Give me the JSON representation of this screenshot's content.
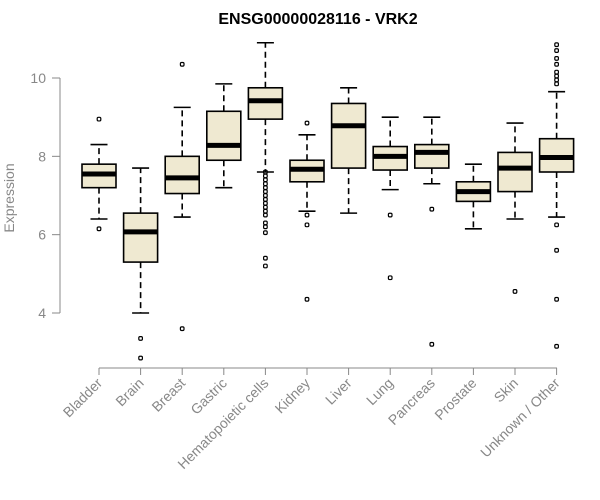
{
  "chart_data": {
    "type": "boxplot",
    "title": "ENSG00000028116 - VRK2",
    "ylabel": "Expression",
    "ylim": [
      2.6,
      11.3
    ],
    "yticks": [
      4,
      6,
      8,
      10
    ],
    "grid": false,
    "legend": "none",
    "colors": {
      "box_fill": "#efe9d1",
      "stroke": "#000000",
      "axis_text": "#888888"
    },
    "categories": [
      "Bladder",
      "Brain",
      "Breast",
      "Gastric",
      "Hematopoietic cells",
      "Kidney",
      "Liver",
      "Lung",
      "Pancreas",
      "Prostate",
      "Skin",
      "Unknown / Other"
    ],
    "boxes": [
      {
        "whisker_low": 6.4,
        "q1": 7.2,
        "median": 7.55,
        "q3": 7.8,
        "whisker_high": 8.3,
        "outliers": [
          6.15,
          8.95
        ]
      },
      {
        "whisker_low": 4.0,
        "q1": 5.3,
        "median": 6.07,
        "q3": 6.55,
        "whisker_high": 7.7,
        "outliers": [
          3.35,
          2.85
        ]
      },
      {
        "whisker_low": 6.45,
        "q1": 7.05,
        "median": 7.45,
        "q3": 8.0,
        "whisker_high": 9.25,
        "outliers": [
          10.35,
          3.6
        ]
      },
      {
        "whisker_low": 7.2,
        "q1": 7.9,
        "median": 8.28,
        "q3": 9.15,
        "whisker_high": 9.85,
        "outliers": []
      },
      {
        "whisker_low": 7.6,
        "q1": 8.95,
        "median": 9.42,
        "q3": 9.75,
        "whisker_high": 10.9,
        "outliers": [
          7.6,
          7.5,
          7.4,
          7.3,
          7.2,
          7.1,
          7.0,
          6.9,
          6.8,
          6.7,
          6.6,
          6.5,
          6.3,
          6.2,
          6.05,
          5.4,
          5.2
        ]
      },
      {
        "whisker_low": 6.6,
        "q1": 7.35,
        "median": 7.67,
        "q3": 7.9,
        "whisker_high": 8.55,
        "outliers": [
          8.85,
          6.5,
          6.25,
          4.35
        ]
      },
      {
        "whisker_low": 6.55,
        "q1": 7.7,
        "median": 8.78,
        "q3": 9.35,
        "whisker_high": 9.75,
        "outliers": []
      },
      {
        "whisker_low": 7.15,
        "q1": 7.65,
        "median": 8.0,
        "q3": 8.25,
        "whisker_high": 9.0,
        "outliers": [
          6.5,
          4.9
        ]
      },
      {
        "whisker_low": 7.3,
        "q1": 7.7,
        "median": 8.1,
        "q3": 8.3,
        "whisker_high": 9.0,
        "outliers": [
          6.65,
          3.2
        ]
      },
      {
        "whisker_low": 6.15,
        "q1": 6.85,
        "median": 7.1,
        "q3": 7.35,
        "whisker_high": 7.8,
        "outliers": []
      },
      {
        "whisker_low": 6.4,
        "q1": 7.1,
        "median": 7.7,
        "q3": 8.1,
        "whisker_high": 8.85,
        "outliers": [
          4.55
        ]
      },
      {
        "whisker_low": 6.45,
        "q1": 7.6,
        "median": 7.97,
        "q3": 8.45,
        "whisker_high": 9.65,
        "outliers": [
          9.85,
          9.95,
          10.05,
          10.15,
          10.35,
          10.5,
          10.7,
          10.85,
          6.25,
          5.6,
          4.35,
          3.15
        ]
      }
    ]
  }
}
